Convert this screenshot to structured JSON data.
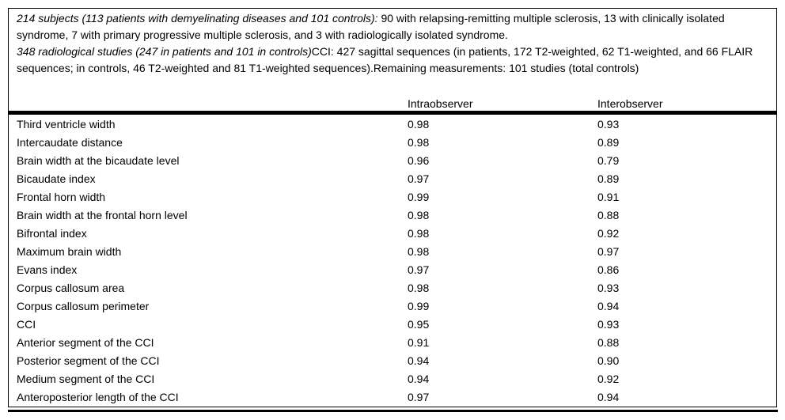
{
  "note": {
    "paragraphs": [
      {
        "segments": [
          {
            "style": "italic",
            "text": "214 subjects (113 patients with demyelinating diseases and 101 controls):"
          },
          {
            "style": "regular",
            "text": " 90 with relapsing-remitting multiple sclerosis, 13 with clinically isolated syndrome, 7 with primary progressive multiple sclerosis, and 3 with radiologically isolated syndrome."
          }
        ]
      },
      {
        "segments": [
          {
            "style": "italic",
            "text": "348 radiological studies (247 in patients and 101 in controls)"
          },
          {
            "style": "regular",
            "text": "CCI: 427 sagittal sequences (in patients, 172 T2-weighted, 62 T1-weighted, and 66 FLAIR sequences; in controls, 46 T2-weighted and 81 T1-weighted sequences).Remaining measurements: 101 studies (total controls)"
          }
        ]
      }
    ]
  },
  "table": {
    "column_headers": {
      "intra": "Intraobserver",
      "inter": "Interobserver"
    },
    "rows": [
      {
        "label": "Third ventricle width",
        "intraobserver": "0.98",
        "interobserver": "0.93"
      },
      {
        "label": "Intercaudate distance",
        "intraobserver": "0.98",
        "interobserver": "0.89"
      },
      {
        "label": "Brain width at the bicaudate level",
        "intraobserver": "0.96",
        "interobserver": "0.79"
      },
      {
        "label": "Bicaudate index",
        "intraobserver": "0.97",
        "interobserver": "0.89"
      },
      {
        "label": "Frontal horn width",
        "intraobserver": "0.99",
        "interobserver": "0.91"
      },
      {
        "label": "Brain width at the frontal horn level",
        "intraobserver": "0.98",
        "interobserver": "0.88"
      },
      {
        "label": "Bifrontal index",
        "intraobserver": "0.98",
        "interobserver": "0.92"
      },
      {
        "label": "Maximum brain width",
        "intraobserver": "0.98",
        "interobserver": "0.97"
      },
      {
        "label": "Evans index",
        "intraobserver": "0.97",
        "interobserver": "0.86"
      },
      {
        "label": "Corpus callosum area",
        "intraobserver": "0.98",
        "interobserver": "0.93"
      },
      {
        "label": "Corpus callosum perimeter",
        "intraobserver": "0.99",
        "interobserver": "0.94"
      },
      {
        "label": "CCI",
        "intraobserver": "0.95",
        "interobserver": "0.93"
      },
      {
        "label": "Anterior segment of the CCI",
        "intraobserver": "0.91",
        "interobserver": "0.88"
      },
      {
        "label": "Posterior segment of the CCI",
        "intraobserver": "0.94",
        "interobserver": "0.90"
      },
      {
        "label": "Medium segment of the CCI",
        "intraobserver": "0.94",
        "interobserver": "0.92"
      },
      {
        "label": "Anteroposterior length of the CCI",
        "intraobserver": "0.97",
        "interobserver": "0.94"
      }
    ]
  },
  "colors": {
    "text": "#000000",
    "background": "#ffffff",
    "rule": "#000000"
  }
}
